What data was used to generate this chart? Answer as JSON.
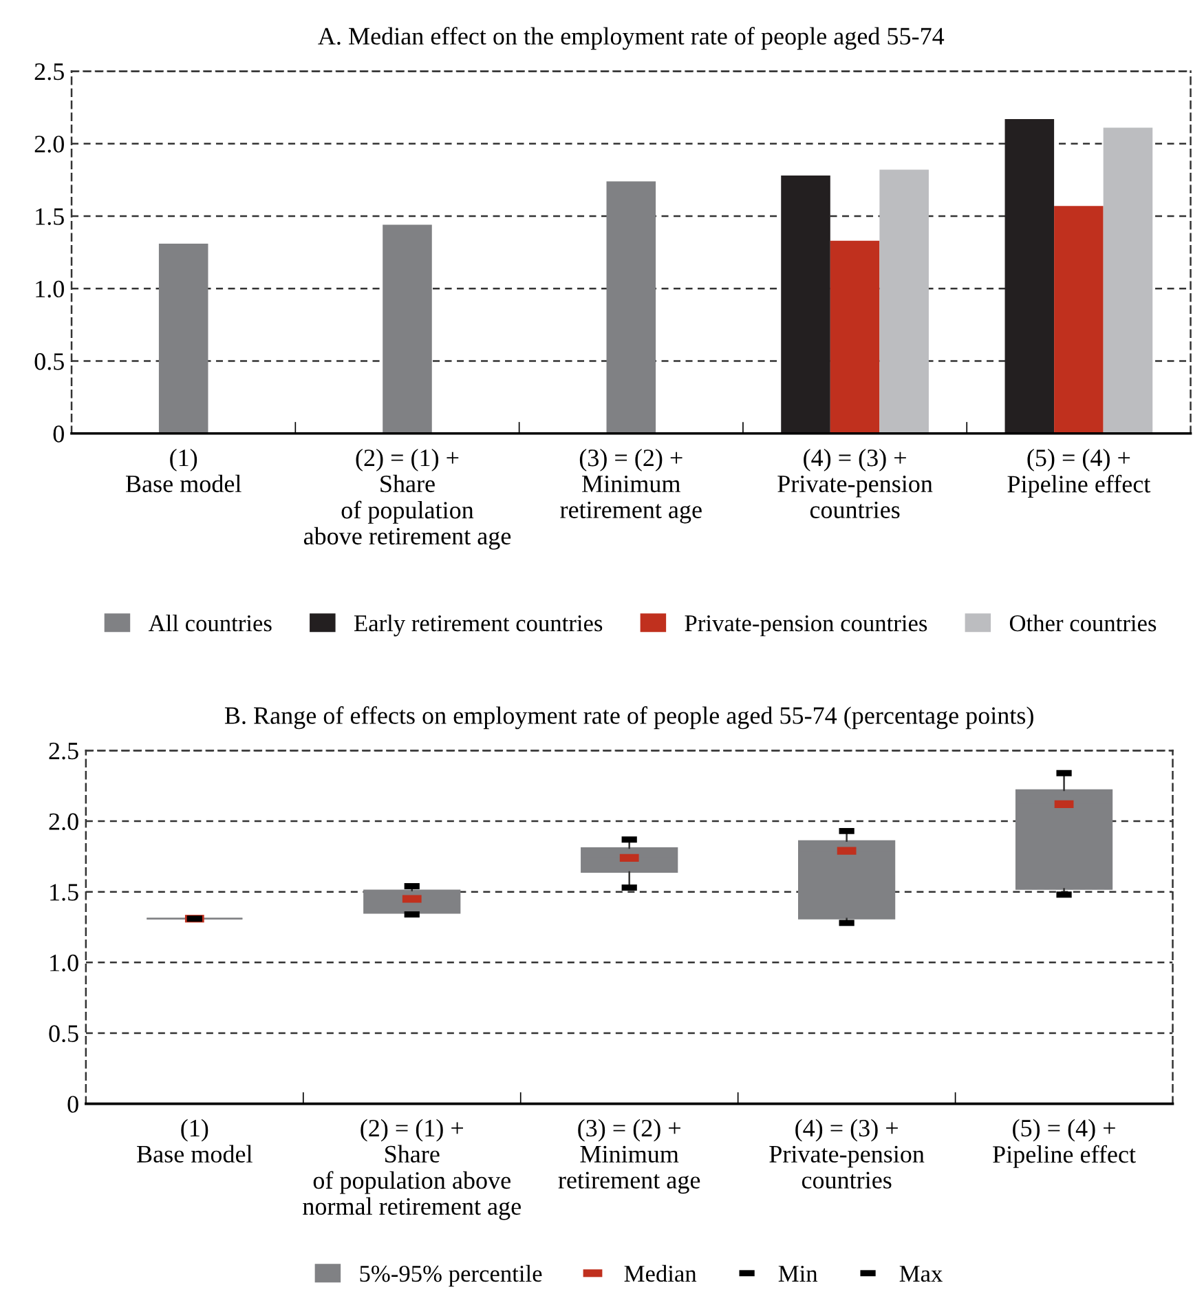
{
  "chart_data": [
    {
      "type": "bar",
      "title": "A. Median effect on the employment rate of people aged 55-74",
      "categories": [
        "(1)\nBase model",
        "(2) = (1) +\nShare\nof population\nabove retirement age",
        "(3) = (2) +\nMinimum\nretirement age",
        "(4) = (3) +\nPrivate-pension\ncountries",
        "(5) = (4) +\nPipeline effect"
      ],
      "series": [
        {
          "name": "All countries",
          "color": "#808184",
          "values": [
            1.31,
            1.44,
            1.74,
            null,
            null
          ]
        },
        {
          "name": "Early retirement countries",
          "color": "#231f20",
          "values": [
            null,
            null,
            null,
            1.78,
            2.17
          ]
        },
        {
          "name": "Private-pension countries",
          "color": "#c0301e",
          "values": [
            null,
            null,
            null,
            1.33,
            1.57
          ]
        },
        {
          "name": "Other countries",
          "color": "#bcbdc0",
          "values": [
            null,
            null,
            null,
            1.82,
            2.11
          ]
        }
      ],
      "ylim": [
        0,
        2.5
      ],
      "yticks": [
        0,
        {
          "value": 0.5,
          "label": "0.5"
        },
        {
          "value": 1.0,
          "label": "1.0"
        },
        {
          "value": 1.5,
          "label": "1.5"
        },
        {
          "value": 2.0,
          "label": "2.0"
        },
        {
          "value": 2.5,
          "label": "2.5"
        }
      ],
      "grid": "y",
      "legend": "bottom"
    },
    {
      "type": "box",
      "title": "B. Range of effects on employment rate of people aged 55-74 (percentage points)",
      "categories": [
        "(1)\nBase model",
        "(2) = (1) +\nShare\nof population above\nnormal retirement age",
        "(3) = (2) +\nMinimum\nretirement age",
        "(4) = (3) +\nPrivate-pension\ncountries",
        "(5) = (4) +\nPipeline effect"
      ],
      "series": [
        {
          "name": "5%-95% percentile",
          "type": "box",
          "color": "#808184",
          "boxes": [
            {
              "low": 1.31,
              "q1": 1.31,
              "median": 1.31,
              "q3": 1.31,
              "high": 1.31
            },
            {
              "low": 1.34,
              "q1": 1.35,
              "median": 1.45,
              "q3": 1.51,
              "high": 1.54
            },
            {
              "low": 1.53,
              "q1": 1.64,
              "median": 1.74,
              "q3": 1.81,
              "high": 1.87
            },
            {
              "low": 1.28,
              "q1": 1.31,
              "median": 1.79,
              "q3": 1.86,
              "high": 1.93
            },
            {
              "low": 1.48,
              "q1": 1.52,
              "median": 2.12,
              "q3": 2.22,
              "high": 2.34
            }
          ]
        },
        {
          "name": "Median",
          "type": "scatter",
          "color": "#c0301e",
          "values": [
            1.31,
            1.45,
            1.74,
            1.79,
            2.12
          ]
        },
        {
          "name": "Min",
          "type": "scatter",
          "color": "#000000",
          "values": [
            null,
            1.34,
            1.53,
            1.28,
            1.48
          ]
        },
        {
          "name": "Max",
          "type": "scatter",
          "color": "#000000",
          "values": [
            1.31,
            1.54,
            1.87,
            1.93,
            2.34
          ]
        }
      ],
      "ylim": [
        0,
        2.5
      ],
      "yticks": [
        0,
        {
          "value": 0.5,
          "label": "0.5"
        },
        {
          "value": 1.0,
          "label": "1.0"
        },
        {
          "value": 1.5,
          "label": "1.5"
        },
        {
          "value": 2.0,
          "label": "2.0"
        },
        {
          "value": 2.5,
          "label": "2.5"
        }
      ],
      "grid": "y",
      "legend": "bottom"
    }
  ]
}
